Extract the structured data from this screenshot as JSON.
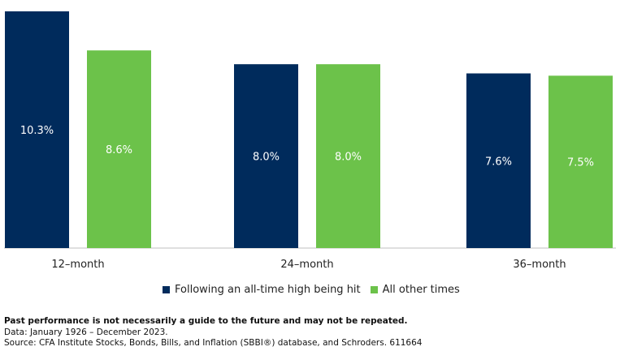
{
  "chart_data": {
    "type": "bar",
    "categories": [
      "12–month",
      "24–month",
      "36–month"
    ],
    "series": [
      {
        "name": "Following an all-time high being hit",
        "values": [
          10.3,
          8.0,
          7.6
        ],
        "labels": [
          "10.3%",
          "8.0%",
          "7.6%"
        ],
        "color": "#002b5c"
      },
      {
        "name": "All other times",
        "values": [
          8.6,
          8.0,
          7.5
        ],
        "labels": [
          "8.6%",
          "8.0%",
          "7.5%"
        ],
        "color": "#6cc24a"
      }
    ],
    "ylim": [
      0,
      10.3
    ],
    "grid": false,
    "legend_position": "bottom"
  },
  "notes": {
    "disclaimer": "Past performance is not necessarily a guide to the future and may not be repeated.",
    "data_line": "Data: January 1926 – December 2023.",
    "source_line": "Source: CFA Institute Stocks, Bonds, Bills, and Inflation (SBBI®) database, and Schroders. 611664"
  }
}
